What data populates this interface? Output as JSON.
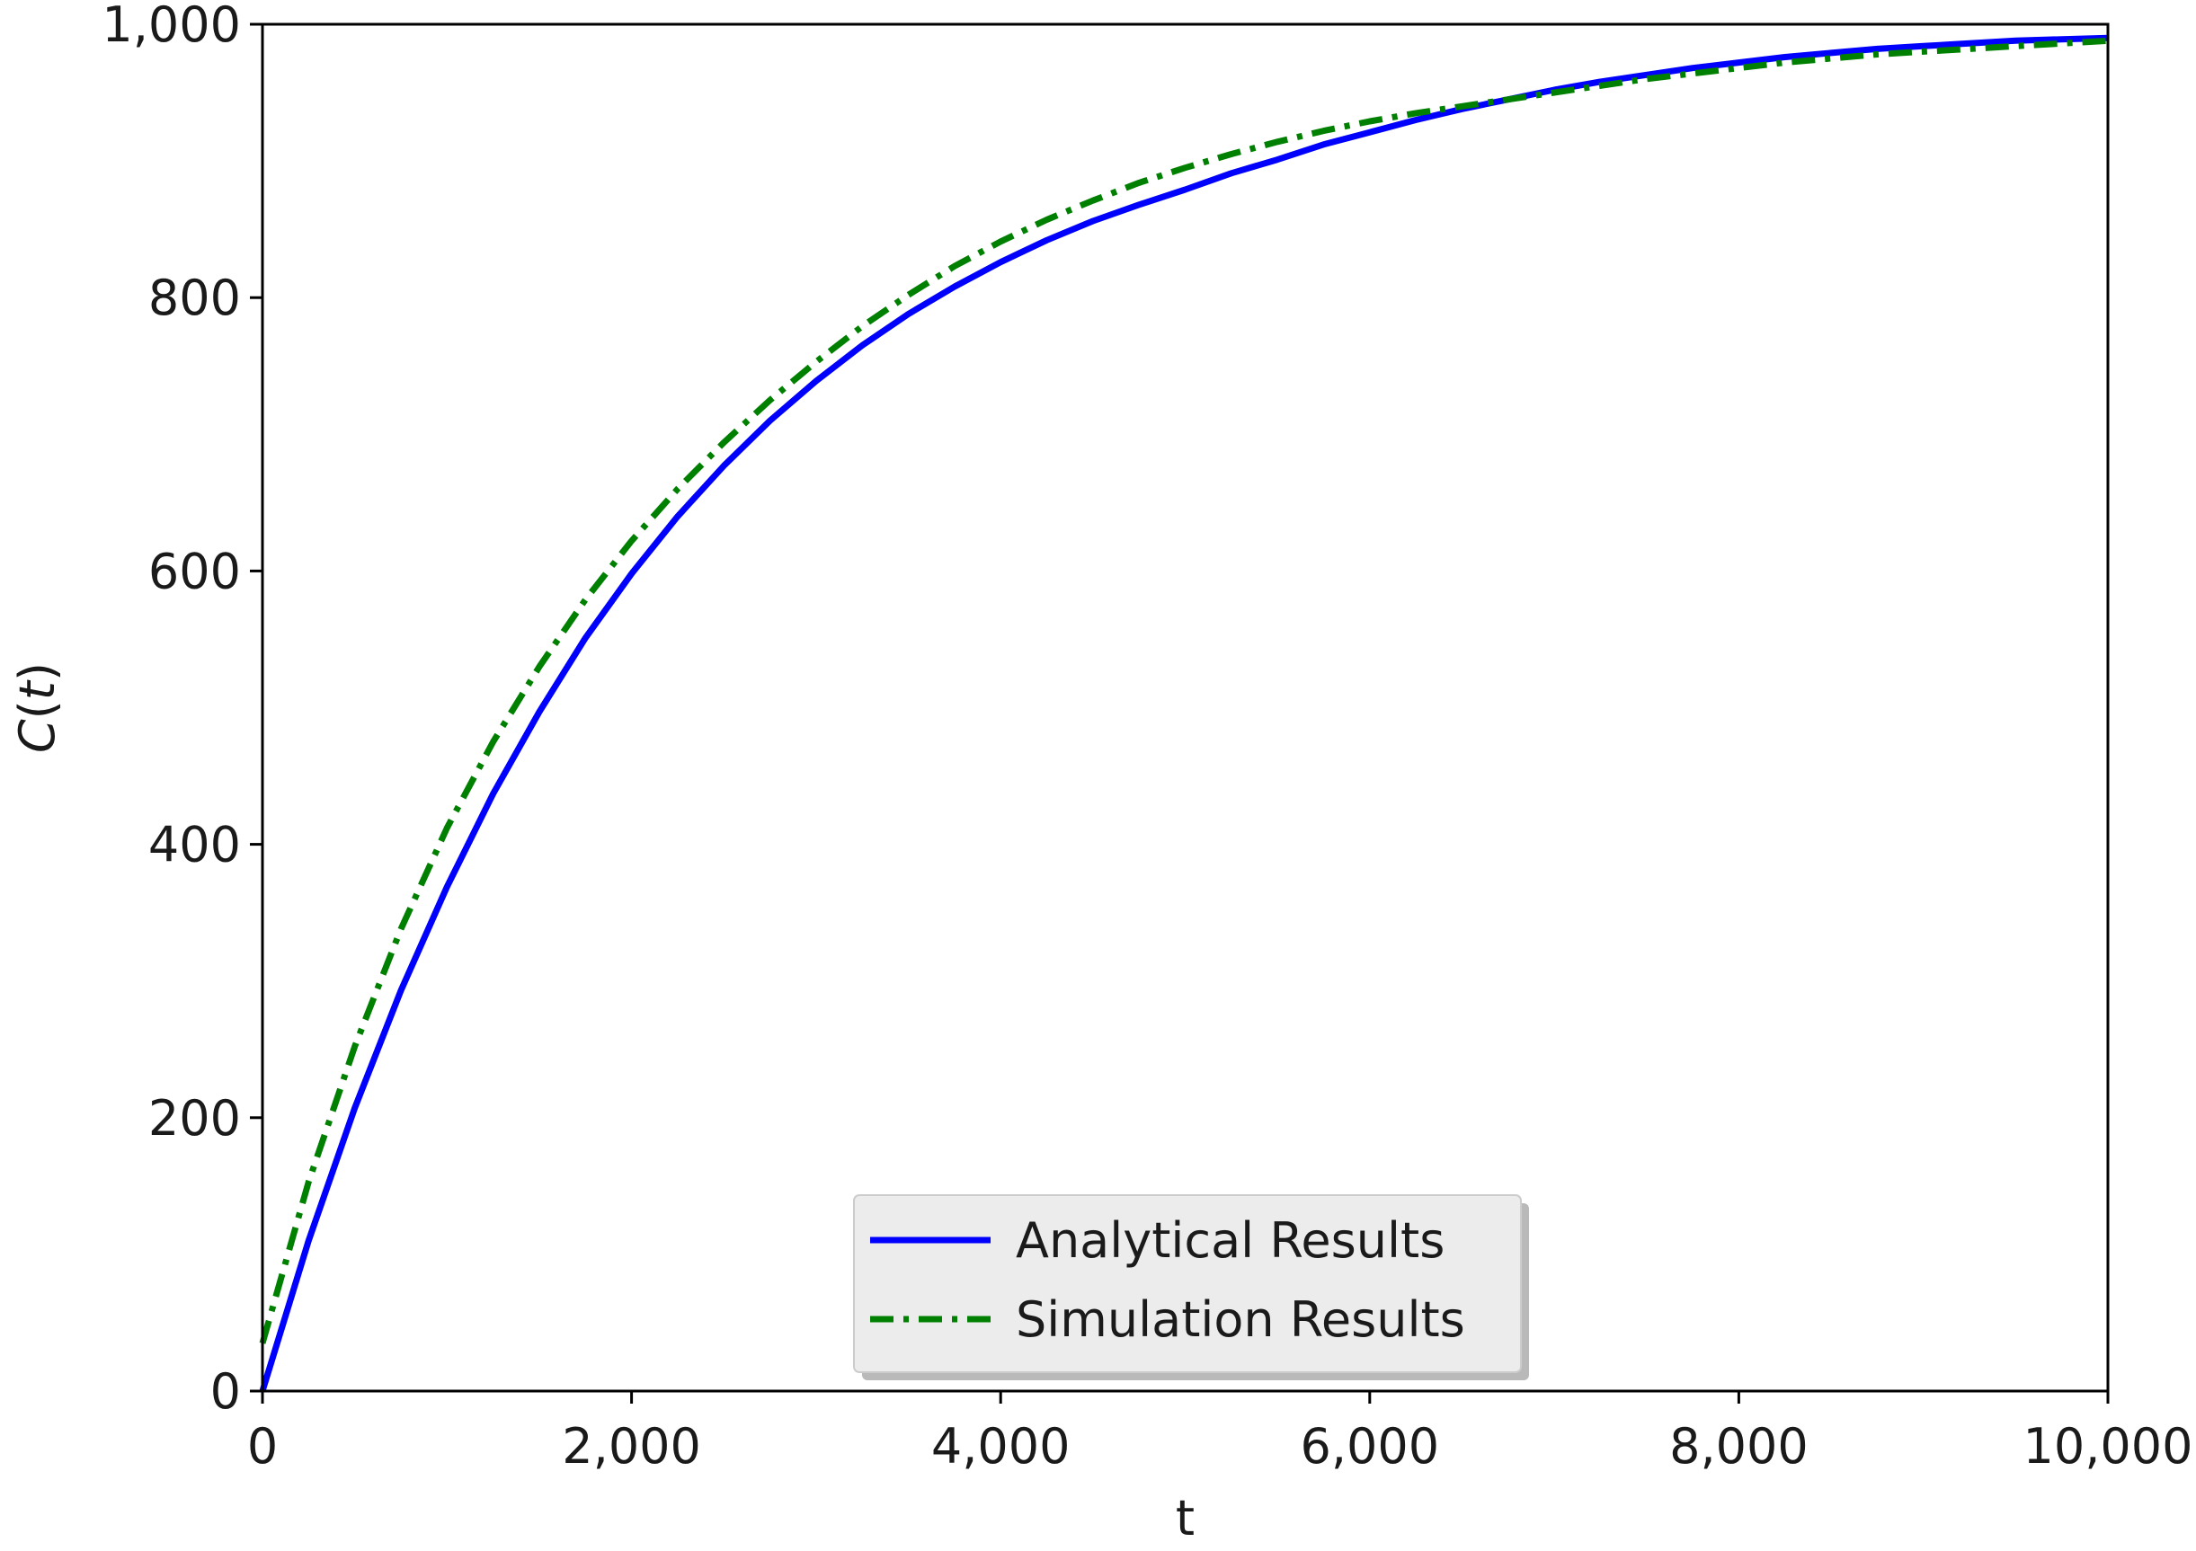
{
  "chart_data": {
    "type": "line",
    "xlabel": "t",
    "ylabel": "C(t)",
    "xlim": [
      0,
      10000
    ],
    "ylim": [
      0,
      1000
    ],
    "x_ticks": [
      0,
      2000,
      4000,
      6000,
      8000,
      10000
    ],
    "x_tick_labels": [
      "0",
      "2,000",
      "4,000",
      "6,000",
      "8,000",
      "10,000"
    ],
    "y_ticks": [
      0,
      200,
      400,
      600,
      800,
      1000
    ],
    "y_tick_labels": [
      "0",
      "200",
      "400",
      "600",
      "800",
      "1,000"
    ],
    "grid": false,
    "legend_position": "bottom-center",
    "x": [
      0,
      250,
      500,
      750,
      1000,
      1250,
      1500,
      1750,
      2000,
      2250,
      2500,
      2750,
      3000,
      3250,
      3500,
      3750,
      4000,
      4250,
      4500,
      4750,
      5000,
      5250,
      5500,
      5750,
      6000,
      6250,
      6500,
      6750,
      7000,
      7250,
      7500,
      7750,
      8000,
      8250,
      8500,
      8750,
      9000,
      9250,
      9500,
      9750,
      10000
    ],
    "series": [
      {
        "name": "Analytical Results",
        "color": "#0000ff",
        "style": "solid",
        "values": [
          0,
          110,
          207,
          293,
          369,
          437,
          497,
          551,
          598,
          640,
          677,
          710,
          739,
          765,
          788,
          808,
          826,
          842,
          856,
          868,
          879,
          891,
          901,
          912,
          921,
          930,
          938,
          945,
          952,
          958,
          963,
          968,
          972,
          976,
          979,
          982,
          984,
          986,
          988,
          989,
          990
        ]
      },
      {
        "name": "Simulation Results",
        "color": "#008000",
        "style": "dashdot",
        "values": [
          35,
          153,
          252,
          338,
          412,
          475,
          530,
          579,
          622,
          660,
          694,
          725,
          753,
          779,
          802,
          823,
          841,
          857,
          871,
          884,
          895,
          905,
          914,
          922,
          929,
          935,
          940,
          945,
          950,
          955,
          960,
          964,
          968,
          972,
          975,
          978,
          980,
          982,
          984,
          986,
          988
        ]
      }
    ]
  }
}
